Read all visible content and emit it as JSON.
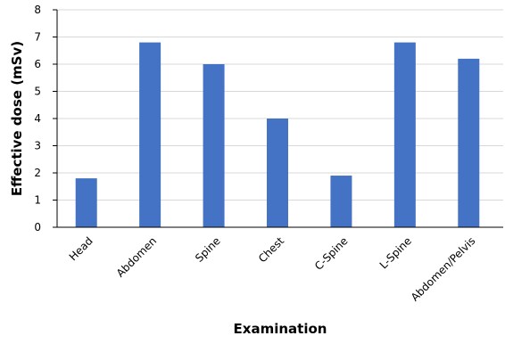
{
  "chart_data": {
    "type": "bar",
    "categories": [
      "Head",
      "Abdomen",
      "Spine",
      "Chest",
      "C-Spine",
      "L-Spine",
      "Abdomen/Pelvis"
    ],
    "values": [
      1.8,
      6.8,
      6.0,
      4.0,
      1.9,
      6.8,
      6.2
    ],
    "xlabel": "Examination",
    "ylabel": "Effective dose (mSv)",
    "ylim": [
      0,
      8
    ],
    "yticks": [
      "0",
      "1",
      "2",
      "3",
      "4",
      "5",
      "6",
      "7",
      "8"
    ],
    "grid": true,
    "legend": "none",
    "bar_color": "#4472C4",
    "grid_color": "#D9D9D9",
    "axis_color": "#000000"
  }
}
